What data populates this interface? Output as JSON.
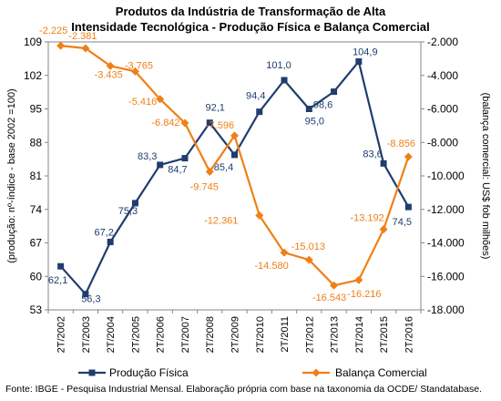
{
  "chart_data": {
    "type": "line",
    "title": "Produtos da Indústria de Transformação de Alta",
    "subtitle": "Intensidade Tecnológica - Produção Física e Balança Comercial",
    "categories": [
      "2T/2002",
      "2T/2003",
      "2T/2004",
      "2T/2005",
      "2T/2006",
      "2T/2007",
      "2T/2008",
      "2T/2009",
      "2T/2010",
      "2T/2011",
      "2T/2012",
      "2T/2013",
      "2T/2014",
      "2T/2015",
      "2T/2016"
    ],
    "y_left": {
      "label": "(produção: nº-índice - base 2002 =100)",
      "range": [
        53,
        109
      ],
      "ticks": [
        "53",
        "60",
        "67",
        "74",
        "81",
        "88",
        "95",
        "102",
        "109"
      ]
    },
    "y_right": {
      "label": "(balança comercial: US$ fob milhões)",
      "range": [
        -18000,
        -2000
      ],
      "ticks": [
        "-18.000",
        "-16.000",
        "-14.000",
        "-12.000",
        "-10.000",
        "-8.000",
        "-6.000",
        "-4.000",
        "-2.000"
      ]
    },
    "series": [
      {
        "name": "Produção Física",
        "axis": "left",
        "color": "#1f3d6e",
        "marker": "square",
        "values": [
          62.1,
          56.3,
          67.2,
          75.3,
          83.3,
          84.7,
          92.1,
          85.4,
          94.4,
          101.0,
          95.0,
          98.6,
          104.9,
          83.6,
          74.5
        ],
        "labels": [
          "62,1",
          "56,3",
          "67,2",
          "75,3",
          "83,3",
          "84,7",
          "92,1",
          "85,4",
          "94,4",
          "101,0",
          "95,0",
          "98,6",
          "104,9",
          "83,6",
          "74,5"
        ],
        "label_color": "#1f3d6e"
      },
      {
        "name": "Balança Comercial",
        "axis": "right",
        "color": "#f07f17",
        "marker": "diamond",
        "values": [
          -2225,
          -2381,
          -3435,
          -3765,
          -5416,
          -6842,
          -9745,
          -7596,
          -12361,
          -14580,
          -15013,
          -16543,
          -16216,
          -13192,
          -8856
        ],
        "labels": [
          "-2.225",
          "-2.381",
          "-3.435",
          "-3.765",
          "-5.416",
          "-6.842",
          "-9.745",
          "-7.596",
          "-12.361",
          "-14.580",
          "-15.013",
          "-16.543",
          "-16.216",
          "-13.192",
          "-8.856"
        ],
        "label_color": "#f07f17"
      }
    ],
    "legend_position": "bottom",
    "grid": false
  },
  "source": "Fonte: IBGE - Pesquisa Industrial Mensal. Elaboração própria com base na taxonomia da OCDE/ Standatabase."
}
